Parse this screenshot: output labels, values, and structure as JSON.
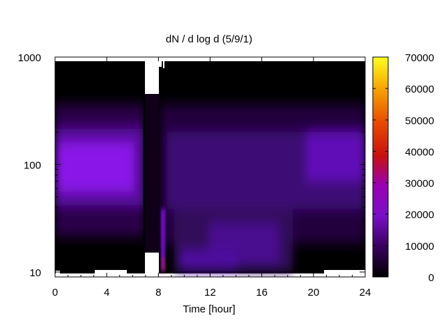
{
  "chart_data": {
    "type": "heatmap",
    "title": "dN / d log d (5/9/1)",
    "xlabel": "Time [hour]",
    "ylabel": "",
    "xlim": [
      0,
      24
    ],
    "ylim": [
      9,
      1000
    ],
    "y_scale": "log",
    "x_ticks": [
      0,
      4,
      8,
      12,
      16,
      20,
      24
    ],
    "x_tick_labels": [
      "0",
      "4",
      "8",
      "12",
      "16",
      "20",
      "24"
    ],
    "y_ticks": [
      10,
      100,
      1000
    ],
    "y_tick_labels": [
      "10",
      "100",
      "1000"
    ],
    "colorbar": {
      "range": [
        0,
        70000
      ],
      "ticks": [
        0,
        10000,
        20000,
        30000,
        40000,
        50000,
        60000,
        70000
      ],
      "tick_labels": [
        "0",
        "10000",
        "20000",
        "30000",
        "40000",
        "50000",
        "60000",
        "70000"
      ],
      "colormap": "gnuplot black-purple-red-yellow"
    },
    "grid": false,
    "data_extent": {
      "x": [
        0,
        24
      ],
      "y": [
        9.6,
        900
      ]
    },
    "gap": {
      "x": [
        6.95,
        8.0
      ],
      "note": "no data"
    },
    "description_values": {
      "peak_diameter_morning": 80,
      "peak_value_morning": 16000,
      "afternoon_small_particle_band_diameter": 14,
      "spike_time": 8.3
    }
  }
}
